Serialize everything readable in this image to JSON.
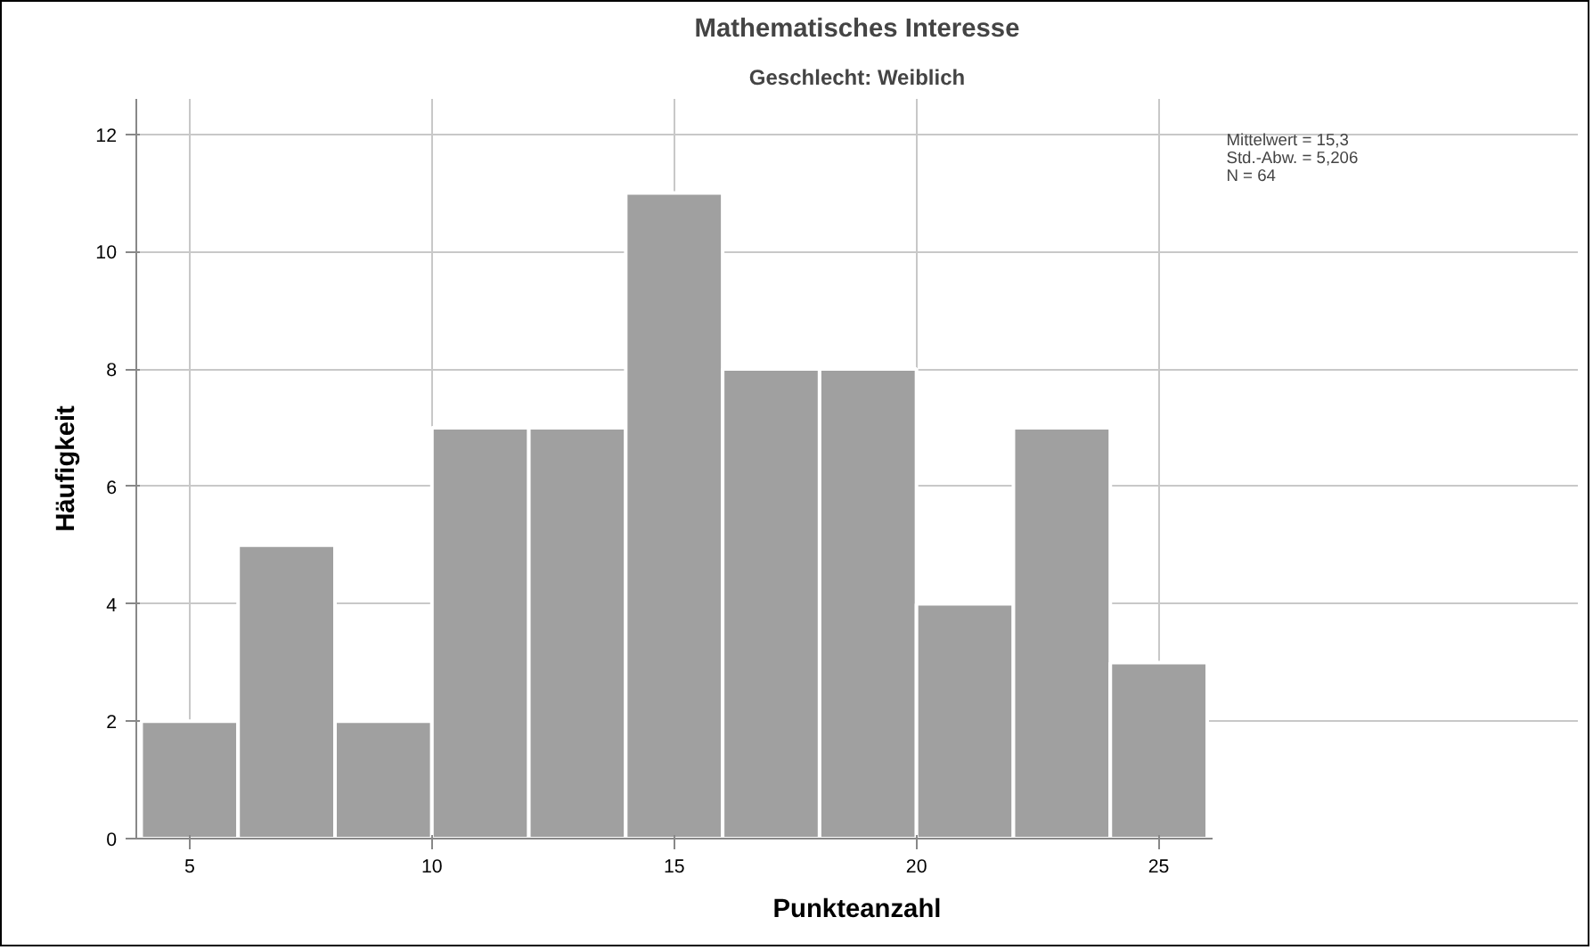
{
  "chart_data": {
    "type": "histogram",
    "title": "Mathematisches Interesse",
    "subtitle": "Geschlecht: Weiblich",
    "xlabel": "Punkteanzahl",
    "ylabel": "Häufigkeit",
    "bins": [
      4,
      6,
      8,
      10,
      12,
      14,
      16,
      18,
      20,
      22,
      24,
      26
    ],
    "values": [
      2,
      5,
      2,
      7,
      7,
      11,
      8,
      8,
      4,
      7,
      3
    ],
    "color": "#a0a0a0",
    "xlim": [
      3.9,
      26.1
    ],
    "xticks": [
      5,
      10,
      15,
      20,
      25
    ],
    "ylim": [
      0,
      12.6
    ],
    "yticks": [
      0,
      2,
      4,
      6,
      8,
      10,
      12
    ],
    "grid": true,
    "annotations": [
      "Mittelwert = 15,3",
      "Std.-Abw. = 5,206",
      "N = 64"
    ]
  }
}
